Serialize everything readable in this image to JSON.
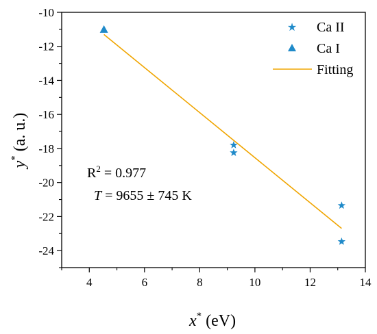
{
  "chart_data": {
    "type": "scatter",
    "xlabel": {
      "main": "x",
      "sup": "*",
      "unit": " (eV)"
    },
    "ylabel": {
      "main": "y",
      "sup": "*",
      "unit": " (a. u.)"
    },
    "xlim": [
      3,
      14
    ],
    "ylim": [
      -25,
      -10
    ],
    "xticks": [
      4,
      6,
      8,
      10,
      12,
      14
    ],
    "yticks": [
      -10,
      -12,
      -14,
      -16,
      -18,
      -20,
      -22,
      -24
    ],
    "xtick_labels": [
      "4",
      "6",
      "8",
      "10",
      "12",
      "14"
    ],
    "ytick_labels": [
      "-10",
      "-12",
      "-14",
      "-16",
      "-18",
      "-20",
      "-22",
      "-24"
    ],
    "grid": false,
    "legend_position": "top-right",
    "series": [
      {
        "name": "Ca II",
        "marker": "star",
        "color": "#1f8ac9",
        "x": [
          9.23,
          9.23,
          13.14,
          13.14
        ],
        "y": [
          -17.8,
          -18.25,
          -21.35,
          -23.47
        ]
      },
      {
        "name": "Ca I",
        "marker": "triangle",
        "color": "#1f8ac9",
        "x": [
          4.53
        ],
        "y": [
          -11.0
        ]
      },
      {
        "name": "Fitting",
        "marker": "line",
        "color": "#f0a500",
        "x": [
          4.53,
          13.14
        ],
        "y": [
          -11.3,
          -22.7
        ]
      }
    ],
    "annotations": {
      "r2_label": "R",
      "r2_sup": "2",
      "r2_value": " = 0.977",
      "t_symbol": "T",
      "t_value": " = 9655 ± 745 K"
    }
  }
}
